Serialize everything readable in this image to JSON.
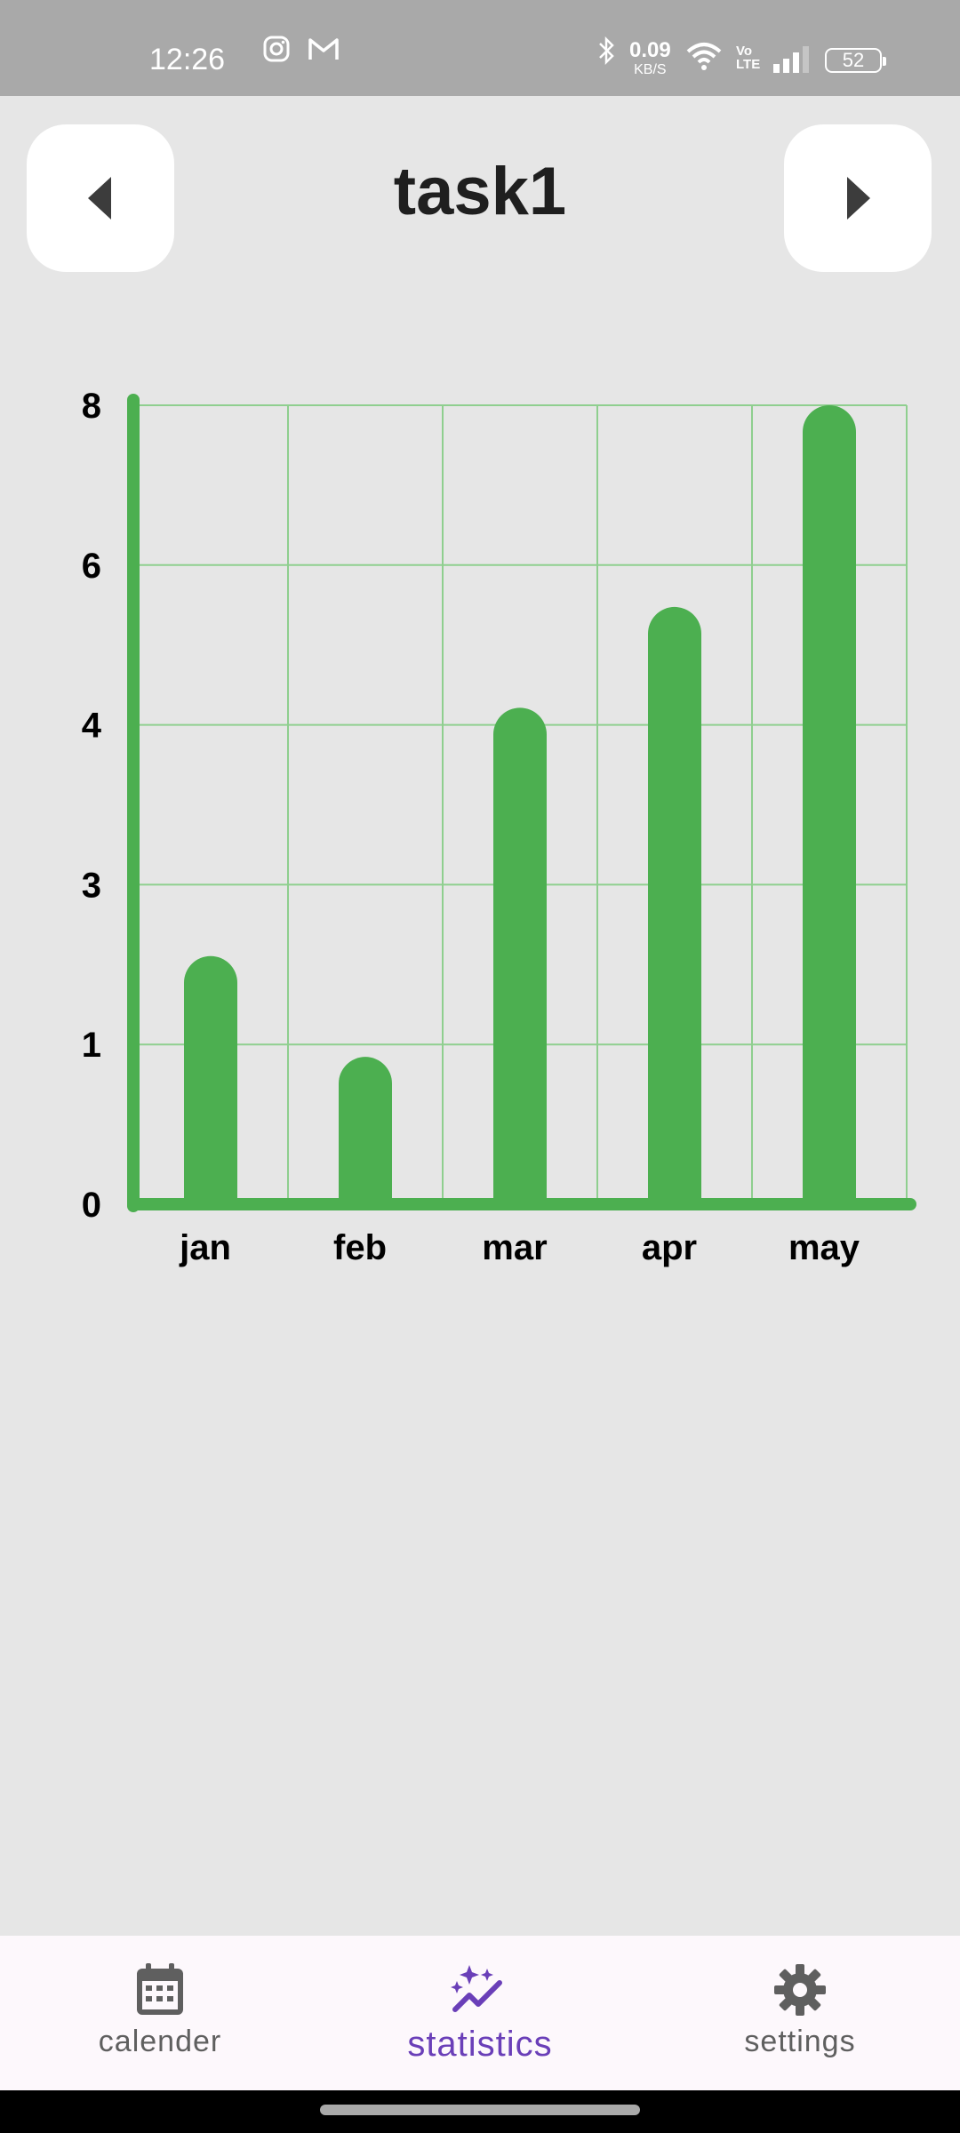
{
  "status_bar": {
    "time": "12:26",
    "speed_value": "0.09",
    "speed_unit": "KB/S",
    "volte": "Vo LTE",
    "battery": "52",
    "icons": [
      "instagram-icon",
      "gmail-icon",
      "bluetooth-icon",
      "wifi-icon",
      "signal-icon",
      "battery-icon"
    ]
  },
  "header": {
    "title": "task1",
    "prev_icon": "triangle-left-icon",
    "next_icon": "triangle-right-icon"
  },
  "chart_data": {
    "type": "bar",
    "categories": [
      "jan",
      "feb",
      "mar",
      "apr",
      "may"
    ],
    "values": [
      3.2,
      1.9,
      6.4,
      7.7,
      10.3
    ],
    "yticks": [
      "0",
      "1",
      "3",
      "4",
      "6",
      "8"
    ],
    "ylim": [
      0,
      10.3
    ],
    "grid": true,
    "bar_color": "#4caf50",
    "grid_color": "#8fcf8f"
  },
  "bottom_nav": {
    "items": [
      {
        "label": "calender",
        "icon": "calendar-icon",
        "active": false
      },
      {
        "label": "statistics",
        "icon": "sparkle-trend-icon",
        "active": true
      },
      {
        "label": "settings",
        "icon": "gear-icon",
        "active": false
      }
    ],
    "active_color": "#6a3fb8"
  }
}
